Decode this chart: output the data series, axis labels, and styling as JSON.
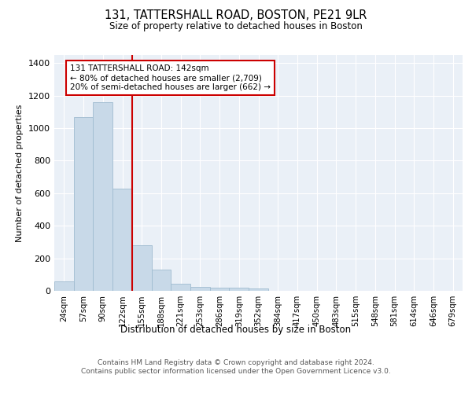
{
  "title1": "131, TATTERSHALL ROAD, BOSTON, PE21 9LR",
  "title2": "Size of property relative to detached houses in Boston",
  "xlabel": "Distribution of detached houses by size in Boston",
  "ylabel": "Number of detached properties",
  "bar_labels": [
    "24sqm",
    "57sqm",
    "90sqm",
    "122sqm",
    "155sqm",
    "188sqm",
    "221sqm",
    "253sqm",
    "286sqm",
    "319sqm",
    "352sqm",
    "384sqm",
    "417sqm",
    "450sqm",
    "483sqm",
    "515sqm",
    "548sqm",
    "581sqm",
    "614sqm",
    "646sqm",
    "679sqm"
  ],
  "bar_values": [
    60,
    1070,
    1160,
    630,
    280,
    130,
    42,
    22,
    20,
    20,
    15,
    0,
    0,
    0,
    0,
    0,
    0,
    0,
    0,
    0,
    0
  ],
  "bar_color": "#c8d9e8",
  "bar_edgecolor": "#a0bcd0",
  "vline_color": "#cc0000",
  "annotation_text": "131 TATTERSHALL ROAD: 142sqm\n← 80% of detached houses are smaller (2,709)\n20% of semi-detached houses are larger (662) →",
  "ylim": [
    0,
    1450
  ],
  "yticks": [
    0,
    200,
    400,
    600,
    800,
    1000,
    1200,
    1400
  ],
  "footer": "Contains HM Land Registry data © Crown copyright and database right 2024.\nContains public sector information licensed under the Open Government Licence v3.0."
}
